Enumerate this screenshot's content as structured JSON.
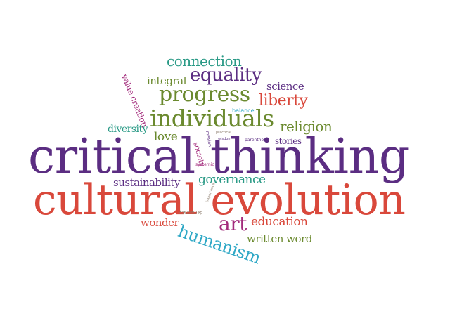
{
  "colors": {
    "purple": "#5b2d82",
    "orange_red": "#d9483b",
    "teal": "#2a9a86",
    "olive": "#6b8a2f",
    "magenta": "#a32b7c",
    "cyan": "#2fa8c6",
    "muted": "#8a7a6a"
  },
  "words": [
    {
      "id": "critical-thinking",
      "text": "critical thinking",
      "weight": 1,
      "color": "purple"
    },
    {
      "id": "cultural-evolution",
      "text": "cultural evolution",
      "weight": 2,
      "color": "orange_red"
    },
    {
      "id": "individuals",
      "text": "individuals",
      "weight": 3,
      "color": "olive"
    },
    {
      "id": "progress",
      "text": "progress",
      "weight": 4,
      "color": "olive"
    },
    {
      "id": "equality",
      "text": "equality",
      "weight": 5,
      "color": "purple"
    },
    {
      "id": "connection",
      "text": "connection",
      "weight": 6,
      "color": "teal"
    },
    {
      "id": "art",
      "text": "art",
      "weight": 7,
      "color": "magenta"
    },
    {
      "id": "humanism",
      "text": "humanism",
      "weight": 8,
      "color": "cyan"
    },
    {
      "id": "liberty",
      "text": "liberty",
      "weight": 9,
      "color": "orange_red"
    },
    {
      "id": "religion",
      "text": "religion",
      "weight": 10,
      "color": "olive"
    },
    {
      "id": "governance",
      "text": "governance",
      "weight": 11,
      "color": "teal"
    },
    {
      "id": "education",
      "text": "education",
      "weight": 12,
      "color": "orange_red"
    },
    {
      "id": "science",
      "text": "science",
      "weight": 13,
      "color": "purple"
    },
    {
      "id": "integral",
      "text": "integral",
      "weight": 14,
      "color": "olive"
    },
    {
      "id": "love",
      "text": "love",
      "weight": 15,
      "color": "olive"
    },
    {
      "id": "sustainability",
      "text": "sustainability",
      "weight": 16,
      "color": "purple"
    },
    {
      "id": "wonder",
      "text": "wonder",
      "weight": 17,
      "color": "orange_red"
    },
    {
      "id": "written-word",
      "text": "written word",
      "weight": 18,
      "color": "olive"
    },
    {
      "id": "diversity",
      "text": "diversity",
      "weight": 19,
      "color": "teal"
    },
    {
      "id": "value-creation",
      "text": "value creation",
      "weight": 20,
      "color": "magenta"
    },
    {
      "id": "stories",
      "text": "stories",
      "weight": 21,
      "color": "purple"
    },
    {
      "id": "society",
      "text": "society",
      "weight": 22,
      "color": "magenta"
    },
    {
      "id": "balance",
      "text": "balance",
      "weight": 23,
      "color": "cyan"
    },
    {
      "id": "mission",
      "text": "mission",
      "weight": 24,
      "color": "purple"
    },
    {
      "id": "parenthood",
      "text": "parenthood",
      "weight": 25,
      "color": "purple"
    },
    {
      "id": "practical",
      "text": "practical",
      "weight": 26,
      "color": "muted"
    },
    {
      "id": "wisdom",
      "text": "wisdom",
      "weight": 27,
      "color": "purple"
    },
    {
      "id": "systemic",
      "text": "systemic",
      "weight": 28,
      "color": "magenta"
    },
    {
      "id": "democracy",
      "text": "democracy",
      "weight": 29,
      "color": "muted"
    },
    {
      "id": "importance",
      "text": "importance",
      "weight": 30,
      "color": "muted"
    }
  ]
}
